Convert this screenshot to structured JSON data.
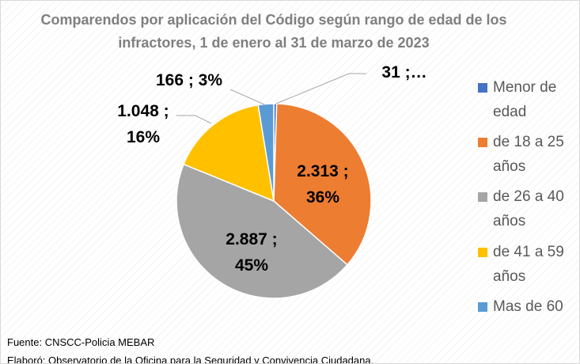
{
  "chart_data": {
    "type": "pie",
    "title": "Comparendos por aplicación del Código según rango de edad de los infractores, 1 de enero al 31 de marzo de 2023",
    "categories": [
      "Menor de edad",
      "de 18 a 25 años",
      "de 26 a 40 años",
      "de 41 a 59 años",
      "Mas de 60"
    ],
    "values": [
      31,
      2313,
      2887,
      1048,
      166
    ],
    "value_labels": [
      "31 ;…",
      "2.313 ; 36%",
      "2.887 ; 45%",
      "1.048 ; 16%",
      "166 ; 3%"
    ],
    "colors": [
      "#4472c4",
      "#ed7d31",
      "#a5a5a5",
      "#ffc000",
      "#5b9bd5"
    ],
    "legend": "right",
    "source": "Fuente: CNSCC-Policia MEBAR",
    "credit": "Elaboró: Observatorio de la Oficina para la Seguridad y Convivencia Ciudadana."
  }
}
